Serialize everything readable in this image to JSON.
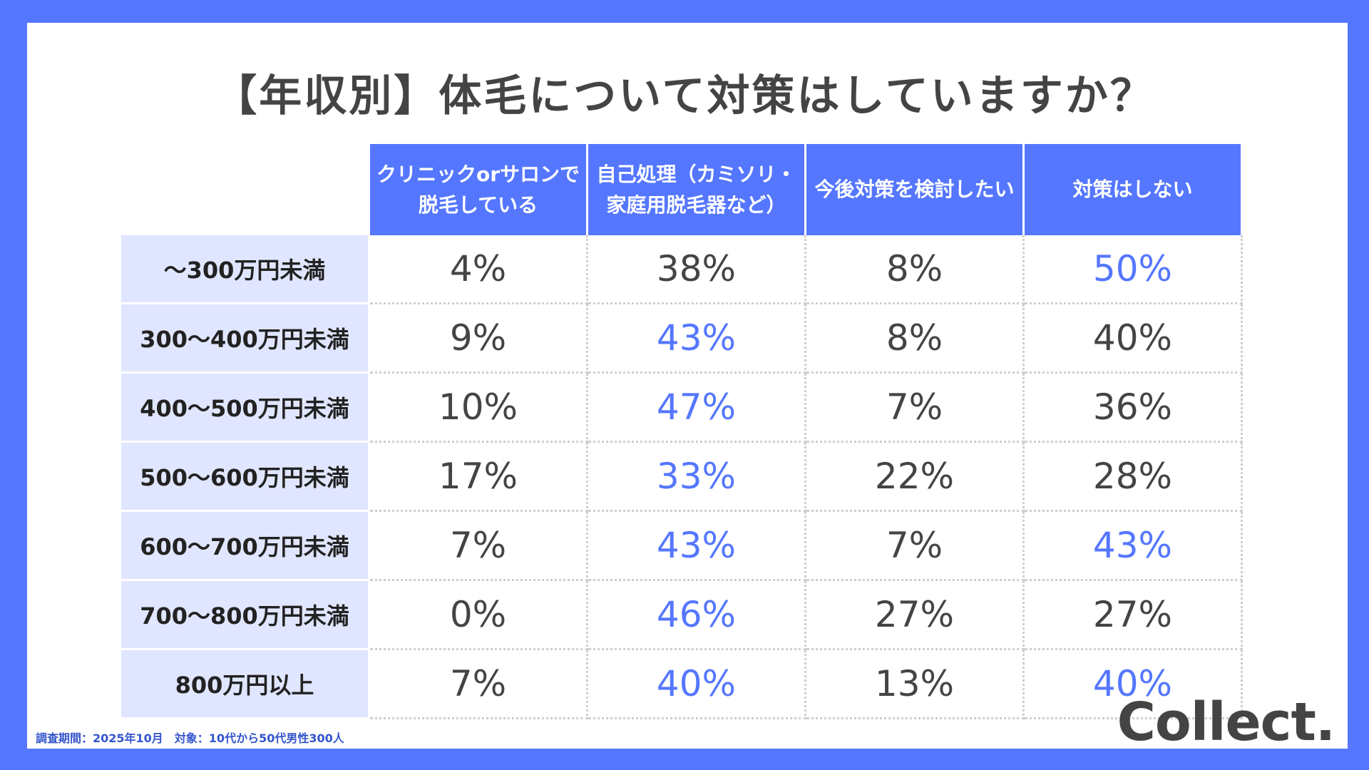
{
  "title": "【年収別】体毛について対策はしていますか？",
  "chart_data": {
    "type": "table",
    "columns": [
      "クリニックorサロンで脱毛している",
      "自己処理（カミソリ・家庭用脱毛器など）",
      "今後対策を検討したい",
      "対策はしない"
    ],
    "rows": [
      {
        "label": "〜300万円未満",
        "values": [
          "4%",
          "38%",
          "8%",
          "50%"
        ],
        "highlight": [
          false,
          false,
          false,
          true
        ]
      },
      {
        "label": "300〜400万円未満",
        "values": [
          "9%",
          "43%",
          "8%",
          "40%"
        ],
        "highlight": [
          false,
          true,
          false,
          false
        ]
      },
      {
        "label": "400〜500万円未満",
        "values": [
          "10%",
          "47%",
          "7%",
          "36%"
        ],
        "highlight": [
          false,
          true,
          false,
          false
        ]
      },
      {
        "label": "500〜600万円未満",
        "values": [
          "17%",
          "33%",
          "22%",
          "28%"
        ],
        "highlight": [
          false,
          true,
          false,
          false
        ]
      },
      {
        "label": "600〜700万円未満",
        "values": [
          "7%",
          "43%",
          "7%",
          "43%"
        ],
        "highlight": [
          false,
          true,
          false,
          true
        ]
      },
      {
        "label": "700〜800万円未満",
        "values": [
          "0%",
          "46%",
          "27%",
          "27%"
        ],
        "highlight": [
          false,
          true,
          false,
          false
        ]
      },
      {
        "label": "800万円以上",
        "values": [
          "7%",
          "40%",
          "13%",
          "40%"
        ],
        "highlight": [
          false,
          true,
          false,
          true
        ]
      }
    ]
  },
  "footnote": "調査期間：2025年10月　対象：10代から50代男性300人",
  "brand": "Collect.",
  "colors": {
    "accent": "#5577ff",
    "row_header_bg": "#e0e6ff",
    "text": "#444444"
  }
}
